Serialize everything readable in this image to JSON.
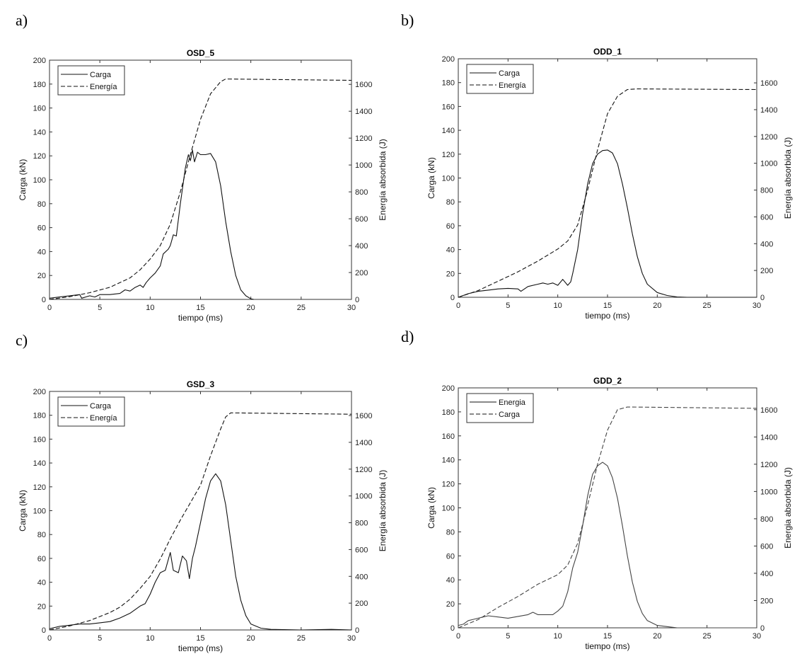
{
  "chart_data": [
    {
      "type": "line",
      "panel_label": "a)",
      "title": "OSD_5",
      "xlabel": "tiempo (ms)",
      "ylabel": "Carga (kN)",
      "y2label": "Energía absorbida (J)",
      "xlim": [
        0,
        30
      ],
      "ylim": [
        0,
        200
      ],
      "y2lim": [
        0,
        1780
      ],
      "xticks": [
        0,
        5,
        10,
        15,
        20,
        25,
        30
      ],
      "yticks": [
        0,
        20,
        40,
        60,
        80,
        100,
        120,
        140,
        160,
        180,
        200
      ],
      "y2ticks": [
        0,
        200,
        400,
        600,
        800,
        1000,
        1200,
        1400,
        1600
      ],
      "legend_position": "top-left",
      "series": [
        {
          "name": "Carga",
          "style": "solid",
          "axis": "left",
          "points": [
            [
              0,
              1
            ],
            [
              1,
              2
            ],
            [
              2,
              3
            ],
            [
              3,
              4
            ],
            [
              3.2,
              1
            ],
            [
              4,
              3
            ],
            [
              4.5,
              2
            ],
            [
              5,
              4
            ],
            [
              6,
              4
            ],
            [
              7,
              5
            ],
            [
              7.5,
              8
            ],
            [
              8,
              7
            ],
            [
              8.5,
              10
            ],
            [
              9,
              12
            ],
            [
              9.3,
              10
            ],
            [
              9.6,
              14
            ],
            [
              10,
              18
            ],
            [
              10.5,
              22
            ],
            [
              11,
              28
            ],
            [
              11.3,
              38
            ],
            [
              11.8,
              42
            ],
            [
              12,
              45
            ],
            [
              12.3,
              54
            ],
            [
              12.6,
              53
            ],
            [
              13,
              80
            ],
            [
              13.5,
              110
            ],
            [
              13.8,
              121
            ],
            [
              14,
              116
            ],
            [
              14.2,
              125
            ],
            [
              14.4,
              115
            ],
            [
              14.7,
              123
            ],
            [
              15,
              121
            ],
            [
              15.5,
              121
            ],
            [
              16,
              122
            ],
            [
              16.5,
              115
            ],
            [
              17,
              95
            ],
            [
              17.5,
              65
            ],
            [
              18,
              40
            ],
            [
              18.5,
              20
            ],
            [
              19,
              8
            ],
            [
              19.5,
              3
            ],
            [
              20,
              0.5
            ],
            [
              20.3,
              0
            ]
          ]
        },
        {
          "name": "Energía",
          "style": "dashed",
          "axis": "right",
          "points": [
            [
              0,
              0
            ],
            [
              2,
              20
            ],
            [
              4,
              50
            ],
            [
              6,
              90
            ],
            [
              8,
              160
            ],
            [
              9,
              220
            ],
            [
              10,
              300
            ],
            [
              11,
              400
            ],
            [
              12,
              560
            ],
            [
              13,
              800
            ],
            [
              14,
              1080
            ],
            [
              15,
              1340
            ],
            [
              16,
              1530
            ],
            [
              17,
              1620
            ],
            [
              17.5,
              1640
            ],
            [
              30,
              1630
            ]
          ]
        }
      ]
    },
    {
      "type": "line",
      "panel_label": "b)",
      "title": "ODD_1",
      "xlabel": "tiempo (ms)",
      "ylabel": "Carga (kN)",
      "y2label": "Energía absorbida (J)",
      "xlim": [
        0,
        30
      ],
      "ylim": [
        0,
        200
      ],
      "y2lim": [
        0,
        1780
      ],
      "xticks": [
        0,
        5,
        10,
        15,
        20,
        25,
        30
      ],
      "yticks": [
        0,
        20,
        40,
        60,
        80,
        100,
        120,
        140,
        160,
        180,
        200
      ],
      "y2ticks": [
        0,
        200,
        400,
        600,
        800,
        1000,
        1200,
        1400,
        1600
      ],
      "legend_position": "top-left",
      "series": [
        {
          "name": "Carga",
          "style": "solid",
          "axis": "left",
          "points": [
            [
              0,
              0
            ],
            [
              1,
              3
            ],
            [
              2,
              5
            ],
            [
              3,
              6
            ],
            [
              4,
              7
            ],
            [
              5,
              7.5
            ],
            [
              6,
              7
            ],
            [
              6.3,
              5
            ],
            [
              7,
              9
            ],
            [
              8,
              11
            ],
            [
              8.5,
              12
            ],
            [
              9,
              11
            ],
            [
              9.5,
              12
            ],
            [
              10,
              10
            ],
            [
              10.5,
              15
            ],
            [
              11,
              10
            ],
            [
              11.3,
              13
            ],
            [
              11.5,
              20
            ],
            [
              12,
              40
            ],
            [
              12.5,
              70
            ],
            [
              13,
              95
            ],
            [
              13.5,
              112
            ],
            [
              14,
              120
            ],
            [
              14.5,
              123
            ],
            [
              15,
              123.5
            ],
            [
              15.5,
              121
            ],
            [
              16,
              112
            ],
            [
              16.5,
              95
            ],
            [
              17,
              75
            ],
            [
              17.5,
              53
            ],
            [
              18,
              34
            ],
            [
              18.5,
              20
            ],
            [
              19,
              11
            ],
            [
              20,
              4
            ],
            [
              21,
              1.5
            ],
            [
              22,
              0.3
            ],
            [
              23,
              0
            ],
            [
              30,
              0
            ]
          ]
        },
        {
          "name": "Energía",
          "style": "dashed",
          "axis": "right",
          "points": [
            [
              0,
              0
            ],
            [
              2,
              50
            ],
            [
              4,
              120
            ],
            [
              6,
              190
            ],
            [
              8,
              270
            ],
            [
              10,
              360
            ],
            [
              11,
              420
            ],
            [
              12,
              540
            ],
            [
              13,
              800
            ],
            [
              14,
              1100
            ],
            [
              15,
              1370
            ],
            [
              16,
              1500
            ],
            [
              17,
              1550
            ],
            [
              18,
              1555
            ],
            [
              30,
              1550
            ]
          ]
        }
      ]
    },
    {
      "type": "line",
      "panel_label": "c)",
      "title": "GSD_3",
      "xlabel": "tiempo (ms)",
      "ylabel": "Carga (kN)",
      "y2label": "Energía absorbida (J)",
      "xlim": [
        0,
        30
      ],
      "ylim": [
        0,
        200
      ],
      "y2lim": [
        0,
        1780
      ],
      "xticks": [
        0,
        5,
        10,
        15,
        20,
        25,
        30
      ],
      "yticks": [
        0,
        20,
        40,
        60,
        80,
        100,
        120,
        140,
        160,
        180,
        200
      ],
      "y2ticks": [
        0,
        200,
        400,
        600,
        800,
        1000,
        1200,
        1400,
        1600
      ],
      "legend_position": "top-left",
      "series": [
        {
          "name": "Carga",
          "style": "solid",
          "axis": "left",
          "points": [
            [
              0,
              1
            ],
            [
              1,
              3
            ],
            [
              2,
              4
            ],
            [
              3,
              5
            ],
            [
              4,
              5
            ],
            [
              5,
              6
            ],
            [
              6,
              7
            ],
            [
              7,
              10
            ],
            [
              8,
              14
            ],
            [
              9,
              20
            ],
            [
              9.5,
              22
            ],
            [
              10,
              30
            ],
            [
              10.5,
              40
            ],
            [
              11,
              48
            ],
            [
              11.5,
              50
            ],
            [
              12,
              65
            ],
            [
              12.3,
              50
            ],
            [
              12.8,
              48
            ],
            [
              13.2,
              62
            ],
            [
              13.6,
              58
            ],
            [
              13.9,
              43
            ],
            [
              14.2,
              60
            ],
            [
              14.5,
              70
            ],
            [
              15,
              90
            ],
            [
              15.5,
              110
            ],
            [
              16,
              125
            ],
            [
              16.5,
              131
            ],
            [
              17,
              125
            ],
            [
              17.5,
              105
            ],
            [
              18,
              75
            ],
            [
              18.5,
              45
            ],
            [
              19,
              25
            ],
            [
              19.5,
              12
            ],
            [
              20,
              5
            ],
            [
              21,
              1.5
            ],
            [
              22,
              0.5
            ],
            [
              25,
              0
            ],
            [
              28,
              0.5
            ],
            [
              30,
              0
            ]
          ]
        },
        {
          "name": "Energía",
          "style": "dashed",
          "axis": "right",
          "points": [
            [
              0,
              0
            ],
            [
              2,
              30
            ],
            [
              4,
              70
            ],
            [
              6,
              130
            ],
            [
              7,
              170
            ],
            [
              8,
              230
            ],
            [
              9,
              310
            ],
            [
              10,
              400
            ],
            [
              11,
              530
            ],
            [
              12,
              680
            ],
            [
              13,
              820
            ],
            [
              14,
              950
            ],
            [
              15,
              1080
            ],
            [
              16,
              1300
            ],
            [
              17,
              1500
            ],
            [
              17.5,
              1590
            ],
            [
              18,
              1620
            ],
            [
              30,
              1610
            ]
          ]
        }
      ]
    },
    {
      "type": "line",
      "panel_label": "d)",
      "title": "GDD_2",
      "xlabel": "tiempo (ms)",
      "ylabel": "Carga (kN)",
      "y2label": "Energia absorbida (J)",
      "xlim": [
        0,
        30
      ],
      "ylim": [
        0,
        200
      ],
      "y2lim": [
        0,
        1760
      ],
      "xticks": [
        0,
        5,
        10,
        15,
        20,
        25,
        30
      ],
      "yticks": [
        0,
        20,
        40,
        60,
        80,
        100,
        120,
        140,
        160,
        180,
        200
      ],
      "y2ticks": [
        0,
        200,
        400,
        600,
        800,
        1000,
        1200,
        1400,
        1600
      ],
      "legend_position": "top-left",
      "series": [
        {
          "name": "Energia",
          "style": "solid",
          "axis": "left",
          "points": [
            [
              0,
              2
            ],
            [
              0.5,
              3
            ],
            [
              1,
              6
            ],
            [
              1.5,
              7
            ],
            [
              2,
              8
            ],
            [
              2.5,
              9
            ],
            [
              3,
              10
            ],
            [
              4,
              9
            ],
            [
              5,
              8
            ],
            [
              6,
              9.5
            ],
            [
              7,
              11
            ],
            [
              7.5,
              13
            ],
            [
              8,
              11
            ],
            [
              9,
              11
            ],
            [
              9.5,
              11
            ],
            [
              10,
              14
            ],
            [
              10.5,
              18
            ],
            [
              11,
              30
            ],
            [
              11.5,
              50
            ],
            [
              12,
              63
            ],
            [
              12.5,
              85
            ],
            [
              13,
              110
            ],
            [
              13.5,
              128
            ],
            [
              14,
              135
            ],
            [
              14.5,
              138
            ],
            [
              15,
              135
            ],
            [
              15.5,
              125
            ],
            [
              16,
              108
            ],
            [
              16.5,
              85
            ],
            [
              17,
              60
            ],
            [
              17.5,
              38
            ],
            [
              18,
              22
            ],
            [
              18.5,
              12
            ],
            [
              19,
              6
            ],
            [
              20,
              2
            ],
            [
              21,
              1
            ],
            [
              22,
              0
            ],
            [
              30,
              0
            ]
          ]
        },
        {
          "name": "Carga",
          "style": "dashed",
          "axis": "right",
          "points": [
            [
              0,
              0
            ],
            [
              2,
              60
            ],
            [
              4,
              150
            ],
            [
              6,
              230
            ],
            [
              8,
              320
            ],
            [
              10,
              390
            ],
            [
              11,
              460
            ],
            [
              12,
              620
            ],
            [
              13,
              900
            ],
            [
              14,
              1200
            ],
            [
              15,
              1450
            ],
            [
              16,
              1600
            ],
            [
              17,
              1620
            ],
            [
              30,
              1610
            ]
          ]
        }
      ]
    }
  ]
}
